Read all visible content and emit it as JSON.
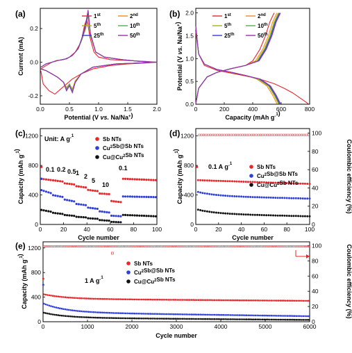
{
  "colors": {
    "red": "#e8262b",
    "orange": "#f08a1c",
    "olive": "#a8b012",
    "green": "#4caf50",
    "blue": "#2f3fd8",
    "purple": "#9c2fb0",
    "black": "#111111"
  },
  "chart_data": [
    {
      "panel": "(a)",
      "type": "line",
      "xlabel": "Potential (V vs. Na/Na⁺)",
      "ylabel": "Current (mA)",
      "xlim": [
        0.0,
        2.0
      ],
      "ylim": [
        -0.25,
        0.32
      ],
      "xticks": [
        "0.0",
        "0.5",
        "1.0",
        "1.5",
        "2.0"
      ],
      "yticks": [
        "-0.2",
        "0.0",
        "0.2"
      ],
      "legend": [
        "1st",
        "2nd",
        "5th",
        "10th",
        "25th",
        "50th"
      ],
      "series": [
        {
          "name": "1st",
          "x": [
            0.01,
            0.1,
            0.2,
            0.28,
            0.4,
            0.5,
            0.6,
            0.7,
            0.76,
            0.8,
            0.85,
            0.92,
            1.0,
            1.2,
            1.5,
            1.8,
            2.0,
            1.8,
            1.5,
            1.2,
            0.9,
            0.7,
            0.55,
            0.45,
            0.35,
            0.25,
            0.15,
            0.05,
            0.01
          ],
          "y": [
            -0.04,
            -0.02,
            0.0,
            0.01,
            0.015,
            0.03,
            0.06,
            0.12,
            0.22,
            0.26,
            0.15,
            0.06,
            0.03,
            0.015,
            0.01,
            0.005,
            0.0,
            -0.005,
            -0.01,
            -0.02,
            -0.04,
            -0.07,
            -0.1,
            -0.13,
            -0.16,
            -0.19,
            -0.17,
            -0.13,
            -0.05
          ]
        },
        {
          "name": "2nd",
          "x": [
            0.01,
            0.1,
            0.2,
            0.3,
            0.45,
            0.55,
            0.65,
            0.72,
            0.78,
            0.82,
            0.86,
            0.95,
            1.1,
            1.4,
            1.7,
            2.0,
            1.7,
            1.3,
            0.9,
            0.7,
            0.6,
            0.55,
            0.5,
            0.45,
            0.4,
            0.3,
            0.2,
            0.1,
            0.01
          ],
          "y": [
            -0.03,
            -0.01,
            0.0,
            0.01,
            0.02,
            0.04,
            0.08,
            0.14,
            0.2,
            0.28,
            0.16,
            0.06,
            0.03,
            0.015,
            0.005,
            0.0,
            -0.005,
            -0.01,
            -0.03,
            -0.07,
            -0.11,
            -0.16,
            -0.13,
            -0.15,
            -0.12,
            -0.09,
            -0.07,
            -0.05,
            -0.04
          ]
        },
        {
          "name": "5th",
          "x": [
            0.01,
            0.1,
            0.2,
            0.3,
            0.45,
            0.55,
            0.65,
            0.72,
            0.78,
            0.82,
            0.86,
            0.95,
            1.1,
            1.4,
            1.7,
            2.0,
            1.7,
            1.3,
            0.9,
            0.7,
            0.6,
            0.55,
            0.5,
            0.45,
            0.4,
            0.3,
            0.2,
            0.1,
            0.01
          ],
          "y": [
            -0.03,
            -0.01,
            0.0,
            0.01,
            0.02,
            0.04,
            0.08,
            0.14,
            0.21,
            0.29,
            0.16,
            0.06,
            0.03,
            0.015,
            0.005,
            0.0,
            -0.005,
            -0.01,
            -0.03,
            -0.07,
            -0.11,
            -0.17,
            -0.13,
            -0.16,
            -0.12,
            -0.09,
            -0.07,
            -0.05,
            -0.04
          ]
        },
        {
          "name": "10th",
          "x": [
            0.01,
            0.1,
            0.2,
            0.3,
            0.45,
            0.55,
            0.65,
            0.72,
            0.78,
            0.82,
            0.86,
            0.95,
            1.1,
            1.4,
            1.7,
            2.0,
            1.7,
            1.3,
            0.9,
            0.7,
            0.6,
            0.55,
            0.5,
            0.45,
            0.4,
            0.3,
            0.2,
            0.1,
            0.01
          ],
          "y": [
            -0.03,
            -0.01,
            0.0,
            0.01,
            0.02,
            0.04,
            0.08,
            0.14,
            0.21,
            0.28,
            0.16,
            0.06,
            0.03,
            0.015,
            0.005,
            0.0,
            -0.005,
            -0.01,
            -0.03,
            -0.07,
            -0.12,
            -0.17,
            -0.13,
            -0.16,
            -0.12,
            -0.09,
            -0.07,
            -0.05,
            -0.04
          ]
        },
        {
          "name": "25th",
          "x": [
            0.01,
            0.1,
            0.2,
            0.3,
            0.45,
            0.55,
            0.65,
            0.72,
            0.78,
            0.82,
            0.86,
            0.95,
            1.1,
            1.4,
            1.7,
            2.0,
            1.7,
            1.3,
            0.9,
            0.7,
            0.6,
            0.55,
            0.5,
            0.45,
            0.4,
            0.3,
            0.2,
            0.1,
            0.01
          ],
          "y": [
            -0.03,
            -0.01,
            0.0,
            0.01,
            0.02,
            0.04,
            0.08,
            0.15,
            0.22,
            0.3,
            0.17,
            0.06,
            0.03,
            0.015,
            0.005,
            0.0,
            -0.005,
            -0.01,
            -0.03,
            -0.07,
            -0.12,
            -0.18,
            -0.14,
            -0.17,
            -0.12,
            -0.09,
            -0.07,
            -0.05,
            -0.04
          ]
        },
        {
          "name": "50th",
          "x": [
            0.01,
            0.1,
            0.2,
            0.3,
            0.45,
            0.55,
            0.65,
            0.72,
            0.78,
            0.82,
            0.86,
            0.95,
            1.1,
            1.4,
            1.7,
            2.0,
            1.7,
            1.3,
            0.9,
            0.7,
            0.6,
            0.55,
            0.5,
            0.45,
            0.4,
            0.3,
            0.2,
            0.1,
            0.01
          ],
          "y": [
            -0.03,
            -0.01,
            0.0,
            0.01,
            0.02,
            0.04,
            0.08,
            0.15,
            0.23,
            0.31,
            0.17,
            0.06,
            0.03,
            0.015,
            0.005,
            0.0,
            -0.005,
            -0.01,
            -0.03,
            -0.07,
            -0.12,
            -0.18,
            -0.14,
            -0.17,
            -0.12,
            -0.09,
            -0.07,
            -0.05,
            -0.04
          ]
        }
      ]
    },
    {
      "panel": "(b)",
      "type": "line",
      "xlabel": "Capacity (mAh g⁻¹)",
      "ylabel": "Potential (V vs. Na/Na⁺)",
      "xlim": [
        0,
        800
      ],
      "ylim": [
        0.0,
        2.1
      ],
      "xticks": [
        "0",
        "200",
        "400",
        "600",
        "800"
      ],
      "yticks": [
        "0.0",
        "0.5",
        "1.0",
        "1.5",
        "2.0"
      ],
      "legend": [
        "1st",
        "2nd",
        "5th",
        "10th",
        "25th",
        "50th"
      ],
      "series": [
        {
          "name": "1st",
          "discharge": {
            "x": [
              0,
              20,
              60,
              150,
              250,
              350,
              450,
              550,
              620,
              680,
              740,
              790
            ],
            "y": [
              1.6,
              1.1,
              0.85,
              0.74,
              0.68,
              0.62,
              0.55,
              0.45,
              0.35,
              0.25,
              0.12,
              0.01
            ]
          },
          "charge": {
            "x": [
              0,
              20,
              80,
              150,
              250,
              350,
              400,
              450,
              490,
              520,
              550
            ],
            "y": [
              0.01,
              0.35,
              0.6,
              0.7,
              0.78,
              0.85,
              0.95,
              1.2,
              1.5,
              1.8,
              2.0
            ]
          }
        },
        {
          "name": "2nd",
          "discharge": {
            "x": [
              0,
              20,
              60,
              150,
              250,
              350,
              430,
              500,
              540,
              570
            ],
            "y": [
              1.7,
              1.1,
              0.88,
              0.76,
              0.7,
              0.63,
              0.55,
              0.4,
              0.2,
              0.01
            ]
          },
          "charge": {
            "x": [
              0,
              20,
              80,
              150,
              250,
              350,
              420,
              470,
              510,
              540,
              570
            ],
            "y": [
              0.01,
              0.35,
              0.6,
              0.7,
              0.78,
              0.85,
              0.95,
              1.2,
              1.5,
              1.8,
              2.0
            ]
          }
        },
        {
          "name": "5th",
          "discharge": {
            "x": [
              0,
              20,
              60,
              150,
              250,
              350,
              440,
              510,
              550,
              580
            ],
            "y": [
              1.7,
              1.1,
              0.88,
              0.76,
              0.7,
              0.63,
              0.55,
              0.4,
              0.2,
              0.01
            ]
          },
          "charge": {
            "x": [
              0,
              20,
              80,
              150,
              250,
              350,
              430,
              480,
              520,
              550,
              580
            ],
            "y": [
              0.01,
              0.35,
              0.6,
              0.7,
              0.78,
              0.85,
              0.95,
              1.2,
              1.5,
              1.8,
              2.0
            ]
          }
        },
        {
          "name": "10th",
          "discharge": {
            "x": [
              0,
              20,
              60,
              150,
              250,
              350,
              445,
              515,
              555,
              585
            ],
            "y": [
              1.7,
              1.1,
              0.88,
              0.76,
              0.7,
              0.63,
              0.55,
              0.4,
              0.2,
              0.01
            ]
          },
          "charge": {
            "x": [
              0,
              20,
              80,
              150,
              250,
              350,
              435,
              485,
              525,
              555,
              585
            ],
            "y": [
              0.01,
              0.35,
              0.6,
              0.7,
              0.78,
              0.85,
              0.95,
              1.2,
              1.5,
              1.8,
              2.0
            ]
          }
        },
        {
          "name": "25th",
          "discharge": {
            "x": [
              0,
              20,
              60,
              150,
              250,
              350,
              450,
              520,
              560,
              590
            ],
            "y": [
              1.7,
              1.1,
              0.88,
              0.76,
              0.7,
              0.63,
              0.55,
              0.4,
              0.2,
              0.01
            ]
          },
          "charge": {
            "x": [
              0,
              20,
              80,
              150,
              250,
              350,
              440,
              490,
              530,
              560,
              590
            ],
            "y": [
              0.01,
              0.35,
              0.6,
              0.7,
              0.78,
              0.85,
              0.95,
              1.2,
              1.5,
              1.8,
              2.0
            ]
          }
        },
        {
          "name": "50th",
          "discharge": {
            "x": [
              0,
              20,
              60,
              150,
              250,
              350,
              455,
              525,
              565,
              595
            ],
            "y": [
              1.7,
              1.1,
              0.88,
              0.76,
              0.7,
              0.63,
              0.55,
              0.4,
              0.2,
              0.01
            ]
          },
          "charge": {
            "x": [
              0,
              20,
              80,
              150,
              250,
              350,
              445,
              495,
              535,
              565,
              595
            ],
            "y": [
              0.01,
              0.35,
              0.6,
              0.7,
              0.78,
              0.85,
              0.95,
              1.2,
              1.5,
              1.8,
              2.0
            ]
          }
        }
      ]
    },
    {
      "panel": "(c)",
      "type": "scatter",
      "xlabel": "Cycle number",
      "ylabel": "Capacity (mAh g⁻¹)",
      "xlim": [
        0,
        100
      ],
      "ylim": [
        0,
        1300
      ],
      "xticks": [
        "0",
        "20",
        "40",
        "60",
        "80",
        "100"
      ],
      "yticks": [
        "0",
        "400",
        "800",
        "1200"
      ],
      "unit_label": "Unit: A g⁻¹",
      "rate_labels": [
        "0.1",
        "0.2",
        "0.5",
        "1",
        "2",
        "5",
        "10",
        "0.1"
      ],
      "series": [
        {
          "name": "Sb NTs",
          "segments": [
            [
              0,
              10,
              620,
              600
            ],
            [
              10,
              20,
              600,
              580
            ],
            [
              20,
              30,
              560,
              540
            ],
            [
              30,
              40,
              520,
              500
            ],
            [
              40,
              50,
              470,
              450
            ],
            [
              50,
              60,
              420,
              410
            ],
            [
              60,
              70,
              320,
              300
            ],
            [
              70,
              100,
              620,
              600
            ]
          ]
        },
        {
          "name": "Cu₂Sb@Sb NTs",
          "segments": [
            [
              0,
              10,
              470,
              420
            ],
            [
              10,
              20,
              400,
              370
            ],
            [
              20,
              30,
              340,
              310
            ],
            [
              30,
              40,
              280,
              260
            ],
            [
              40,
              50,
              230,
              210
            ],
            [
              50,
              60,
              180,
              160
            ],
            [
              60,
              70,
              120,
              110
            ],
            [
              70,
              100,
              380,
              370
            ]
          ]
        },
        {
          "name": "Cu@Cu₂Sb NTs",
          "segments": [
            [
              0,
              10,
              200,
              170
            ],
            [
              10,
              20,
              160,
              140
            ],
            [
              20,
              30,
              130,
              115
            ],
            [
              30,
              40,
              105,
              95
            ],
            [
              40,
              50,
              85,
              75
            ],
            [
              50,
              60,
              60,
              50
            ],
            [
              60,
              70,
              35,
              30
            ],
            [
              70,
              100,
              130,
              110
            ]
          ]
        }
      ]
    },
    {
      "panel": "(d)",
      "type": "scatter",
      "xlabel": "Cycle number",
      "ylabel": "Capacity (mAh g⁻¹)",
      "y2label": "Coulombic efficiency (%)",
      "xlim": [
        0,
        100
      ],
      "ylim": [
        0,
        1300
      ],
      "y2lim": [
        0,
        105
      ],
      "xticks": [
        "0",
        "20",
        "40",
        "60",
        "80",
        "100"
      ],
      "yticks": [
        "0",
        "400",
        "800",
        "1200"
      ],
      "y2ticks": [
        "0",
        "20",
        "40",
        "60",
        "80",
        "100"
      ],
      "rate_label": "0.1 A g⁻¹",
      "series": [
        {
          "name": "Sb NTs",
          "start": 600,
          "end": 550,
          "ce": 98
        },
        {
          "name": "Cu₂Sb@Sb NTs",
          "start": 440,
          "end": 350
        },
        {
          "name": "Cu@Cu₂Sb NTs",
          "start": 200,
          "end": 110
        }
      ]
    },
    {
      "panel": "(e)",
      "type": "scatter",
      "xlabel": "Cycle number",
      "ylabel": "Capacity (mAh g⁻¹)",
      "y2label": "Coulombic efficiency (%)",
      "xlim": [
        0,
        6000
      ],
      "ylim": [
        0,
        1300
      ],
      "y2lim": [
        0,
        105
      ],
      "xticks": [
        "0",
        "1000",
        "2000",
        "3000",
        "4000",
        "5000",
        "6000"
      ],
      "yticks": [
        "0",
        "400",
        "800",
        "1200"
      ],
      "y2ticks": [
        "0",
        "20",
        "40",
        "60",
        "80",
        "100"
      ],
      "rate_label": "1 A g⁻¹",
      "series": [
        {
          "name": "Sb NTs",
          "start": 450,
          "end": 340,
          "ce": 99
        },
        {
          "name": "Cu₂Sb@Sb NTs",
          "start": 300,
          "end": 90
        },
        {
          "name": "Cu@Cu₂Sb NTs",
          "start": 150,
          "end": 30
        }
      ]
    }
  ]
}
